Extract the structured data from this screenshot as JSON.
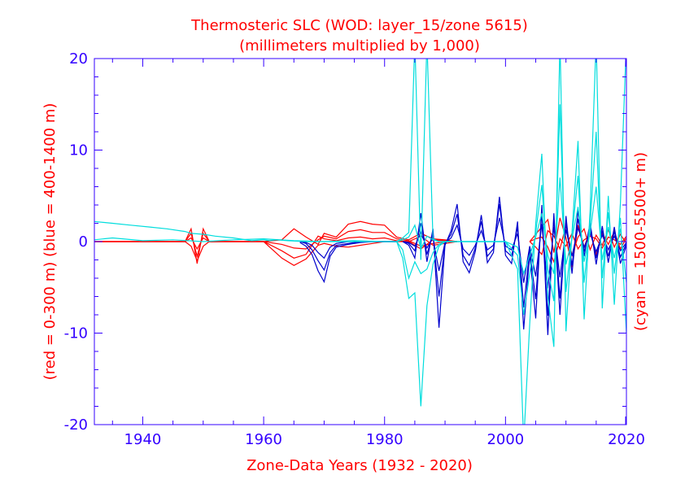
{
  "chart_data": {
    "type": "line",
    "title": "Thermosteric SLC (WOD: layer_15/zone 5615)",
    "subtitle": "(millimeters multiplied by 1,000)",
    "xlabel": "Zone-Data Years (1932 - 2020)",
    "ylabel_left": "(red = 0-300 m)  (blue = 400-1400 m)",
    "ylabel_right": "(cyan = 1500-5500+ m)",
    "xlim": [
      1932,
      2020
    ],
    "ylim": [
      -20,
      20
    ],
    "xticks": [
      "1940",
      "1960",
      "1980",
      "2000",
      "2020"
    ],
    "yticks": [
      "20",
      "10",
      "0",
      "-10",
      "-20"
    ],
    "grid": false,
    "colors": {
      "axis": "#3300ff",
      "text": "#ff0000",
      "red": "#ff0000",
      "blue": "#0000cc",
      "cyan": "#00dddd"
    },
    "series": [
      {
        "color": "#ff0000",
        "x": [
          1932,
          1947,
          1948,
          1949,
          1950,
          1951,
          1960,
          1963,
          1965,
          1967,
          1969,
          1970,
          1972,
          1974,
          1976,
          1978,
          1980,
          1982,
          1984,
          1986,
          1988,
          1990,
          1992
        ],
        "y": [
          0,
          0,
          1.4,
          -2.4,
          1.4,
          0,
          0,
          0.2,
          1.4,
          0.5,
          -0.3,
          0.9,
          0.5,
          1.9,
          2.2,
          1.9,
          1.8,
          0.5,
          0.2,
          0.9,
          0.3,
          0.2,
          0
        ]
      },
      {
        "color": "#ff0000",
        "x": [
          1932,
          1947,
          1948,
          1949,
          1950,
          1951,
          1960,
          1963,
          1965,
          1967,
          1969,
          1970,
          1972,
          1974,
          1976,
          1978,
          1980,
          1982,
          1984,
          1986,
          1988,
          1990,
          1992
        ],
        "y": [
          0,
          0,
          0.9,
          -1.6,
          0.9,
          0,
          0,
          -0.3,
          -0.7,
          -0.8,
          0.2,
          0.6,
          0.3,
          1.1,
          1.3,
          1.0,
          1.0,
          0.3,
          0.1,
          -0.5,
          -0.2,
          0,
          0
        ]
      },
      {
        "color": "#ff0000",
        "x": [
          1932,
          1947,
          1948,
          1949,
          1950,
          1951,
          1960,
          1963,
          1965,
          1967,
          1969,
          1970,
          1972,
          1974,
          1976,
          1978,
          1980,
          1982,
          1984,
          1986,
          1988,
          1990,
          1992
        ],
        "y": [
          0,
          0,
          0.4,
          -0.8,
          0.4,
          0,
          0,
          -1.0,
          -1.8,
          -1.4,
          0.6,
          0.3,
          0.1,
          0.4,
          0.5,
          0.3,
          0.4,
          0.1,
          0,
          0.6,
          -0.4,
          -0.2,
          0
        ]
      },
      {
        "color": "#ff0000",
        "x": [
          1932,
          1947,
          1948,
          1949,
          1950,
          1951,
          1960,
          1963,
          1965,
          1967,
          1969,
          1970,
          1972,
          1974,
          1976,
          1978,
          1980,
          1982,
          1984,
          1986,
          1988,
          1990,
          1992
        ],
        "y": [
          0,
          0,
          -0.5,
          -2.1,
          -0.5,
          0,
          0,
          -1.8,
          -2.6,
          -1.9,
          -0.4,
          -0.2,
          -0.5,
          -0.6,
          -0.4,
          -0.2,
          0,
          0,
          0,
          -0.8,
          0.2,
          0.1,
          0
        ]
      },
      {
        "color": "#ff0000",
        "x": [
          2004,
          2005,
          2006,
          2007,
          2008,
          2009,
          2010,
          2011,
          2012,
          2013,
          2014,
          2015,
          2016,
          2017,
          2018,
          2019,
          2020
        ],
        "y": [
          0,
          0.8,
          1.6,
          2.4,
          -1.2,
          2.6,
          0.4,
          -2.8,
          1.8,
          -0.6,
          1.2,
          -1.5,
          0.9,
          -0.3,
          1.1,
          -0.8,
          0.4
        ]
      },
      {
        "color": "#ff0000",
        "x": [
          2004,
          2005,
          2006,
          2007,
          2008,
          2009,
          2010,
          2011,
          2012,
          2013,
          2014,
          2015,
          2016,
          2017,
          2018,
          2019,
          2020
        ],
        "y": [
          0,
          -0.6,
          -1.4,
          1.2,
          0.6,
          -0.8,
          1.8,
          -1.5,
          0.5,
          1.4,
          -0.9,
          0.7,
          -0.4,
          1.3,
          -0.6,
          0.8,
          -0.2
        ]
      },
      {
        "color": "#ff0000",
        "x": [
          2004,
          2005,
          2006,
          2007,
          2008,
          2009,
          2010,
          2011,
          2012,
          2013,
          2014,
          2015,
          2016,
          2017,
          2018,
          2019,
          2020
        ],
        "y": [
          0,
          0.3,
          0.5,
          -0.6,
          -2.2,
          0.3,
          -0.5,
          0.9,
          -0.8,
          0.2,
          0.6,
          0.3,
          -0.7,
          0.5,
          0.2,
          -0.3,
          0.6
        ]
      },
      {
        "color": "#0000cc",
        "x": [
          1966,
          1967,
          1968,
          1969,
          1970,
          1971,
          1972,
          1974,
          1976,
          1978,
          1980,
          1982
        ],
        "y": [
          -0.1,
          -0.5,
          -1.4,
          -3.2,
          -4.4,
          -1.6,
          -0.6,
          -0.3,
          -0.1,
          0,
          0,
          0
        ]
      },
      {
        "color": "#0000cc",
        "x": [
          1966,
          1967,
          1968,
          1969,
          1970,
          1971,
          1972,
          1974,
          1976,
          1978,
          1980,
          1982
        ],
        "y": [
          0,
          -0.2,
          -0.9,
          -2.1,
          -3.1,
          -1.2,
          -0.4,
          -0.2,
          0,
          0,
          0,
          0
        ]
      },
      {
        "color": "#0000cc",
        "x": [
          1966,
          1967,
          1968,
          1969,
          1970,
          1971,
          1972,
          1974,
          1976,
          1978,
          1980,
          1982
        ],
        "y": [
          0,
          -0.1,
          -0.4,
          -1.2,
          -1.8,
          -0.6,
          -0.2,
          0,
          0,
          0,
          0,
          0
        ]
      },
      {
        "color": "#0000cc",
        "x": [
          1983,
          1984,
          1985,
          1986,
          1987,
          1988,
          1989,
          1990,
          1991,
          1992,
          1993,
          1994,
          1995,
          1996,
          1997,
          1998,
          1999,
          2000,
          2001,
          2002,
          2003,
          2004,
          2005,
          2006,
          2007,
          2008,
          2009,
          2010,
          2011,
          2012,
          2013,
          2014,
          2015,
          2016,
          2017,
          2018,
          2019,
          2020
        ],
        "y": [
          0,
          -0.4,
          -1.8,
          3.1,
          -2.2,
          1.4,
          -9.4,
          -0.4,
          1.2,
          4.1,
          -2.2,
          -3.4,
          -1.1,
          2.9,
          -2.3,
          -1.2,
          4.9,
          -1.5,
          -2.4,
          2.2,
          -9.6,
          -1.3,
          -8.4,
          4.0,
          -10.2,
          3.1,
          -8.0,
          2.8,
          -3.5,
          3.4,
          -1.6,
          2.1,
          -2.5,
          1.7,
          -2.3,
          1.6,
          -2.4,
          -0.4
        ]
      },
      {
        "color": "#0000cc",
        "x": [
          1983,
          1984,
          1985,
          1986,
          1987,
          1988,
          1989,
          1990,
          1991,
          1992,
          1993,
          1994,
          1995,
          1996,
          1997,
          1998,
          1999,
          2000,
          2001,
          2002,
          2003,
          2004,
          2005,
          2006,
          2007,
          2008,
          2009,
          2010,
          2011,
          2012,
          2013,
          2014,
          2015,
          2016,
          2017,
          2018,
          2019,
          2020
        ],
        "y": [
          0,
          -0.2,
          -1.0,
          2.0,
          -1.4,
          0.9,
          -6.0,
          -0.2,
          0.8,
          3.0,
          -1.5,
          -2.6,
          -0.7,
          2.2,
          -1.6,
          -0.8,
          4.1,
          -1.0,
          -1.6,
          1.6,
          -7.2,
          -0.9,
          -6.3,
          3.2,
          -8.1,
          2.5,
          -6.2,
          2.1,
          -2.6,
          2.5,
          -1.1,
          1.5,
          -1.8,
          1.2,
          -1.6,
          1.1,
          -1.7,
          -0.2
        ]
      },
      {
        "color": "#0000cc",
        "x": [
          1983,
          1984,
          1985,
          1986,
          1987,
          1988,
          1989,
          1990,
          1991,
          1992,
          1993,
          1994,
          1995,
          1996,
          1997,
          1998,
          1999,
          2000,
          2001,
          2002,
          2003,
          2004,
          2005,
          2006,
          2007,
          2008,
          2009,
          2010,
          2011,
          2012,
          2013,
          2014,
          2015,
          2016,
          2017,
          2018,
          2019,
          2020
        ],
        "y": [
          0,
          -0.1,
          -0.5,
          1.0,
          -0.7,
          0.4,
          -3.2,
          -0.1,
          0.4,
          1.8,
          -0.8,
          -1.5,
          -0.4,
          1.2,
          -0.9,
          -0.4,
          2.6,
          -0.5,
          -0.9,
          0.9,
          -4.5,
          -0.5,
          -3.8,
          1.9,
          -5.1,
          1.6,
          -3.9,
          1.3,
          -1.6,
          1.5,
          -0.6,
          0.9,
          -1.1,
          0.7,
          -0.9,
          0.6,
          -1.0,
          -0.1
        ]
      },
      {
        "color": "#00dddd",
        "x": [
          1932,
          1935,
          1938,
          1941,
          1944,
          1947,
          1948,
          1950,
          1952,
          1955,
          1958,
          1960,
          1961,
          1962,
          1964,
          1967,
          1970,
          1974,
          1978,
          1982
        ],
        "y": [
          2.2,
          2.0,
          1.8,
          1.6,
          1.4,
          1.1,
          0.9,
          0.8,
          0.6,
          0.4,
          0.1,
          0.2,
          0.1,
          0.2,
          0.1,
          0,
          0,
          0,
          0,
          0
        ]
      },
      {
        "color": "#00dddd",
        "x": [
          1932,
          1935,
          1940,
          1945,
          1950,
          1955,
          1960,
          1965,
          1970,
          1975,
          1980,
          1982
        ],
        "y": [
          0.2,
          0.4,
          0.1,
          0.2,
          0,
          0.2,
          0.3,
          0.1,
          0,
          0.1,
          0,
          0
        ]
      },
      {
        "color": "#00dddd",
        "x": [
          1982,
          1983,
          1984,
          1985,
          1986,
          1987,
          1988,
          1989,
          1990,
          1992
        ],
        "y": [
          0,
          -1.8,
          -6.2,
          -5.6,
          -18.0,
          -7.0,
          -2.5,
          -0.5,
          0,
          0
        ]
      },
      {
        "color": "#00dddd",
        "x": [
          1982,
          1983,
          1984,
          1985,
          1986,
          1987,
          1988,
          1989,
          1990,
          1992
        ],
        "y": [
          0,
          -0.9,
          -4.0,
          -2.2,
          -3.5,
          -3.0,
          -1.2,
          -0.3,
          0,
          0
        ]
      },
      {
        "color": "#00dddd",
        "x": [
          1982,
          1983,
          1984,
          1985,
          1986,
          1987,
          1988,
          1989,
          1990,
          1992
        ],
        "y": [
          0,
          0.4,
          1.0,
          22.0,
          -2.0,
          22.0,
          0.3,
          0,
          0,
          0
        ]
      },
      {
        "color": "#00dddd",
        "x": [
          1982,
          1983,
          1984,
          1985,
          1986,
          1987,
          1988,
          1989,
          1990,
          1992
        ],
        "y": [
          0,
          0.2,
          0.5,
          1.8,
          -0.8,
          0.6,
          0.2,
          0,
          0,
          0
        ]
      },
      {
        "color": "#00dddd",
        "x": [
          1992,
          1995,
          2000,
          2002,
          2003,
          2004,
          2005,
          2006,
          2007,
          2008,
          2009,
          2010,
          2011,
          2012,
          2013,
          2014,
          2015,
          2016,
          2017,
          2018,
          2019,
          2020
        ],
        "y": [
          0,
          0,
          0,
          -3.0,
          -22.0,
          -9.0,
          2.0,
          9.6,
          -6.0,
          -11.5,
          22.0,
          -9.8,
          1.0,
          11.0,
          -8.5,
          3.5,
          22.0,
          -7.3,
          5.0,
          -6.9,
          4.2,
          22.0
        ]
      },
      {
        "color": "#00dddd",
        "x": [
          1992,
          1995,
          2000,
          2002,
          2003,
          2004,
          2005,
          2006,
          2007,
          2008,
          2009,
          2010,
          2011,
          2012,
          2013,
          2014,
          2015,
          2016,
          2017,
          2018,
          2019,
          2020
        ],
        "y": [
          0,
          0,
          0,
          -1.5,
          -8.0,
          -3.5,
          1.0,
          6.2,
          -3.0,
          -6.5,
          15.0,
          -5.5,
          0.6,
          7.2,
          -4.5,
          2.0,
          12.0,
          -4.0,
          3.2,
          -3.5,
          2.6,
          -10.0
        ]
      },
      {
        "color": "#00dddd",
        "x": [
          1992,
          1995,
          2000,
          2002,
          2003,
          2004,
          2005,
          2006,
          2007,
          2008,
          2009,
          2010,
          2011,
          2012,
          2013,
          2014,
          2015,
          2016,
          2017,
          2018,
          2019,
          2020
        ],
        "y": [
          0,
          0,
          0,
          -0.6,
          -3.5,
          -1.5,
          0.5,
          3.1,
          -1.5,
          -3.5,
          7.0,
          -2.5,
          0.3,
          3.8,
          -2.2,
          1.0,
          6.0,
          -2.0,
          1.6,
          -1.8,
          1.4,
          -4.5
        ]
      }
    ]
  }
}
